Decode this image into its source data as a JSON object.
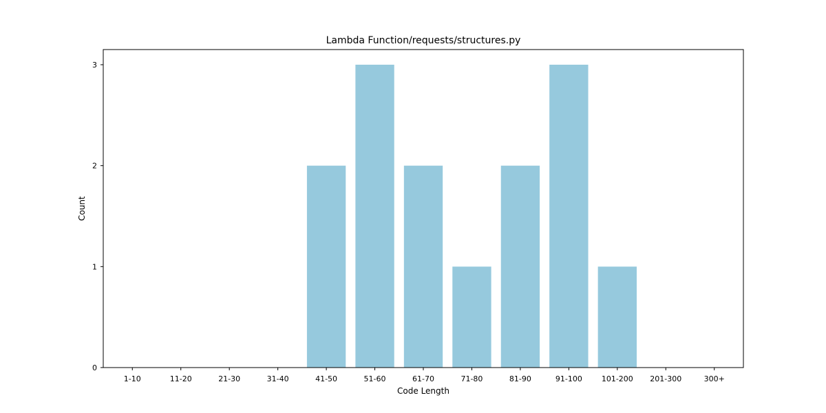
{
  "chart_data": {
    "type": "bar",
    "title": "Lambda Function/requests/structures.py",
    "xlabel": "Code Length",
    "ylabel": "Count",
    "categories": [
      "1-10",
      "11-20",
      "21-30",
      "31-40",
      "41-50",
      "51-60",
      "61-70",
      "71-80",
      "81-90",
      "91-100",
      "101-200",
      "201-300",
      "300+"
    ],
    "values": [
      0,
      0,
      0,
      0,
      2,
      3,
      2,
      1,
      2,
      3,
      1,
      0,
      0
    ],
    "ylim": [
      0,
      3.15
    ],
    "yticks": [
      0,
      1,
      2,
      3
    ],
    "bar_color": "#96c9dd",
    "grid": false,
    "legend": false
  }
}
